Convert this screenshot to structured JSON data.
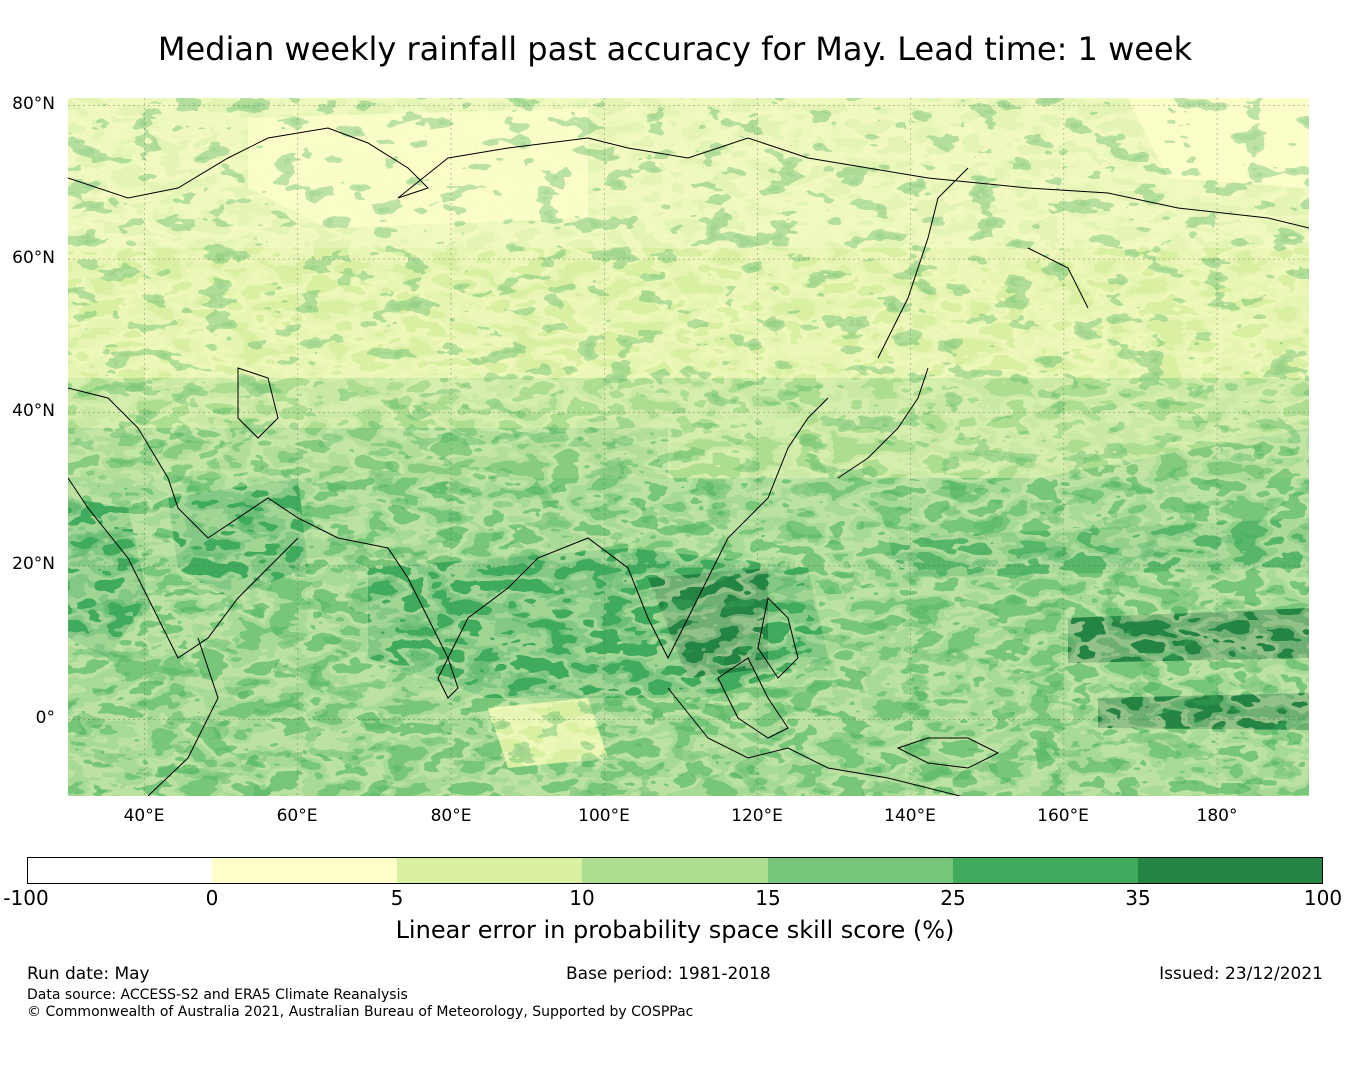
{
  "title": "Median weekly rainfall past accuracy for May. Lead time: 1 week",
  "map": {
    "lon_range": [
      30,
      192
    ],
    "lat_range": [
      -10,
      81
    ],
    "lat_ticks": [
      {
        "value": 80,
        "label": "80°N"
      },
      {
        "value": 60,
        "label": "60°N"
      },
      {
        "value": 40,
        "label": "40°N"
      },
      {
        "value": 20,
        "label": "20°N"
      },
      {
        "value": 0,
        "label": "0°"
      }
    ],
    "lon_ticks": [
      {
        "value": 40,
        "label": "40°E"
      },
      {
        "value": 60,
        "label": "60°E"
      },
      {
        "value": 80,
        "label": "80°E"
      },
      {
        "value": 100,
        "label": "100°E"
      },
      {
        "value": 120,
        "label": "120°E"
      },
      {
        "value": 140,
        "label": "140°E"
      },
      {
        "value": 160,
        "label": "160°E"
      },
      {
        "value": 180,
        "label": "180°"
      }
    ],
    "gridlines": true
  },
  "colorbar": {
    "boundaries": [
      "-100",
      "0",
      "5",
      "10",
      "15",
      "25",
      "35",
      "100"
    ],
    "colors": [
      "#ffffff",
      "#ffffcc",
      "#d9f0a3",
      "#addd8e",
      "#78c679",
      "#41ab5d",
      "#238443"
    ],
    "label": "Linear error in probability space skill score (%)"
  },
  "footer": {
    "run_date": "Run date: May",
    "base_period": "Base period: 1981-2018",
    "issued": "Issued: 23/12/2021",
    "data_source": "Data source: ACCESS-S2 and ERA5 Climate Reanalysis",
    "copyright": "© Commonwealth of Australia 2021, Australian Bureau of Meteorology, Supported by COSPPac"
  }
}
